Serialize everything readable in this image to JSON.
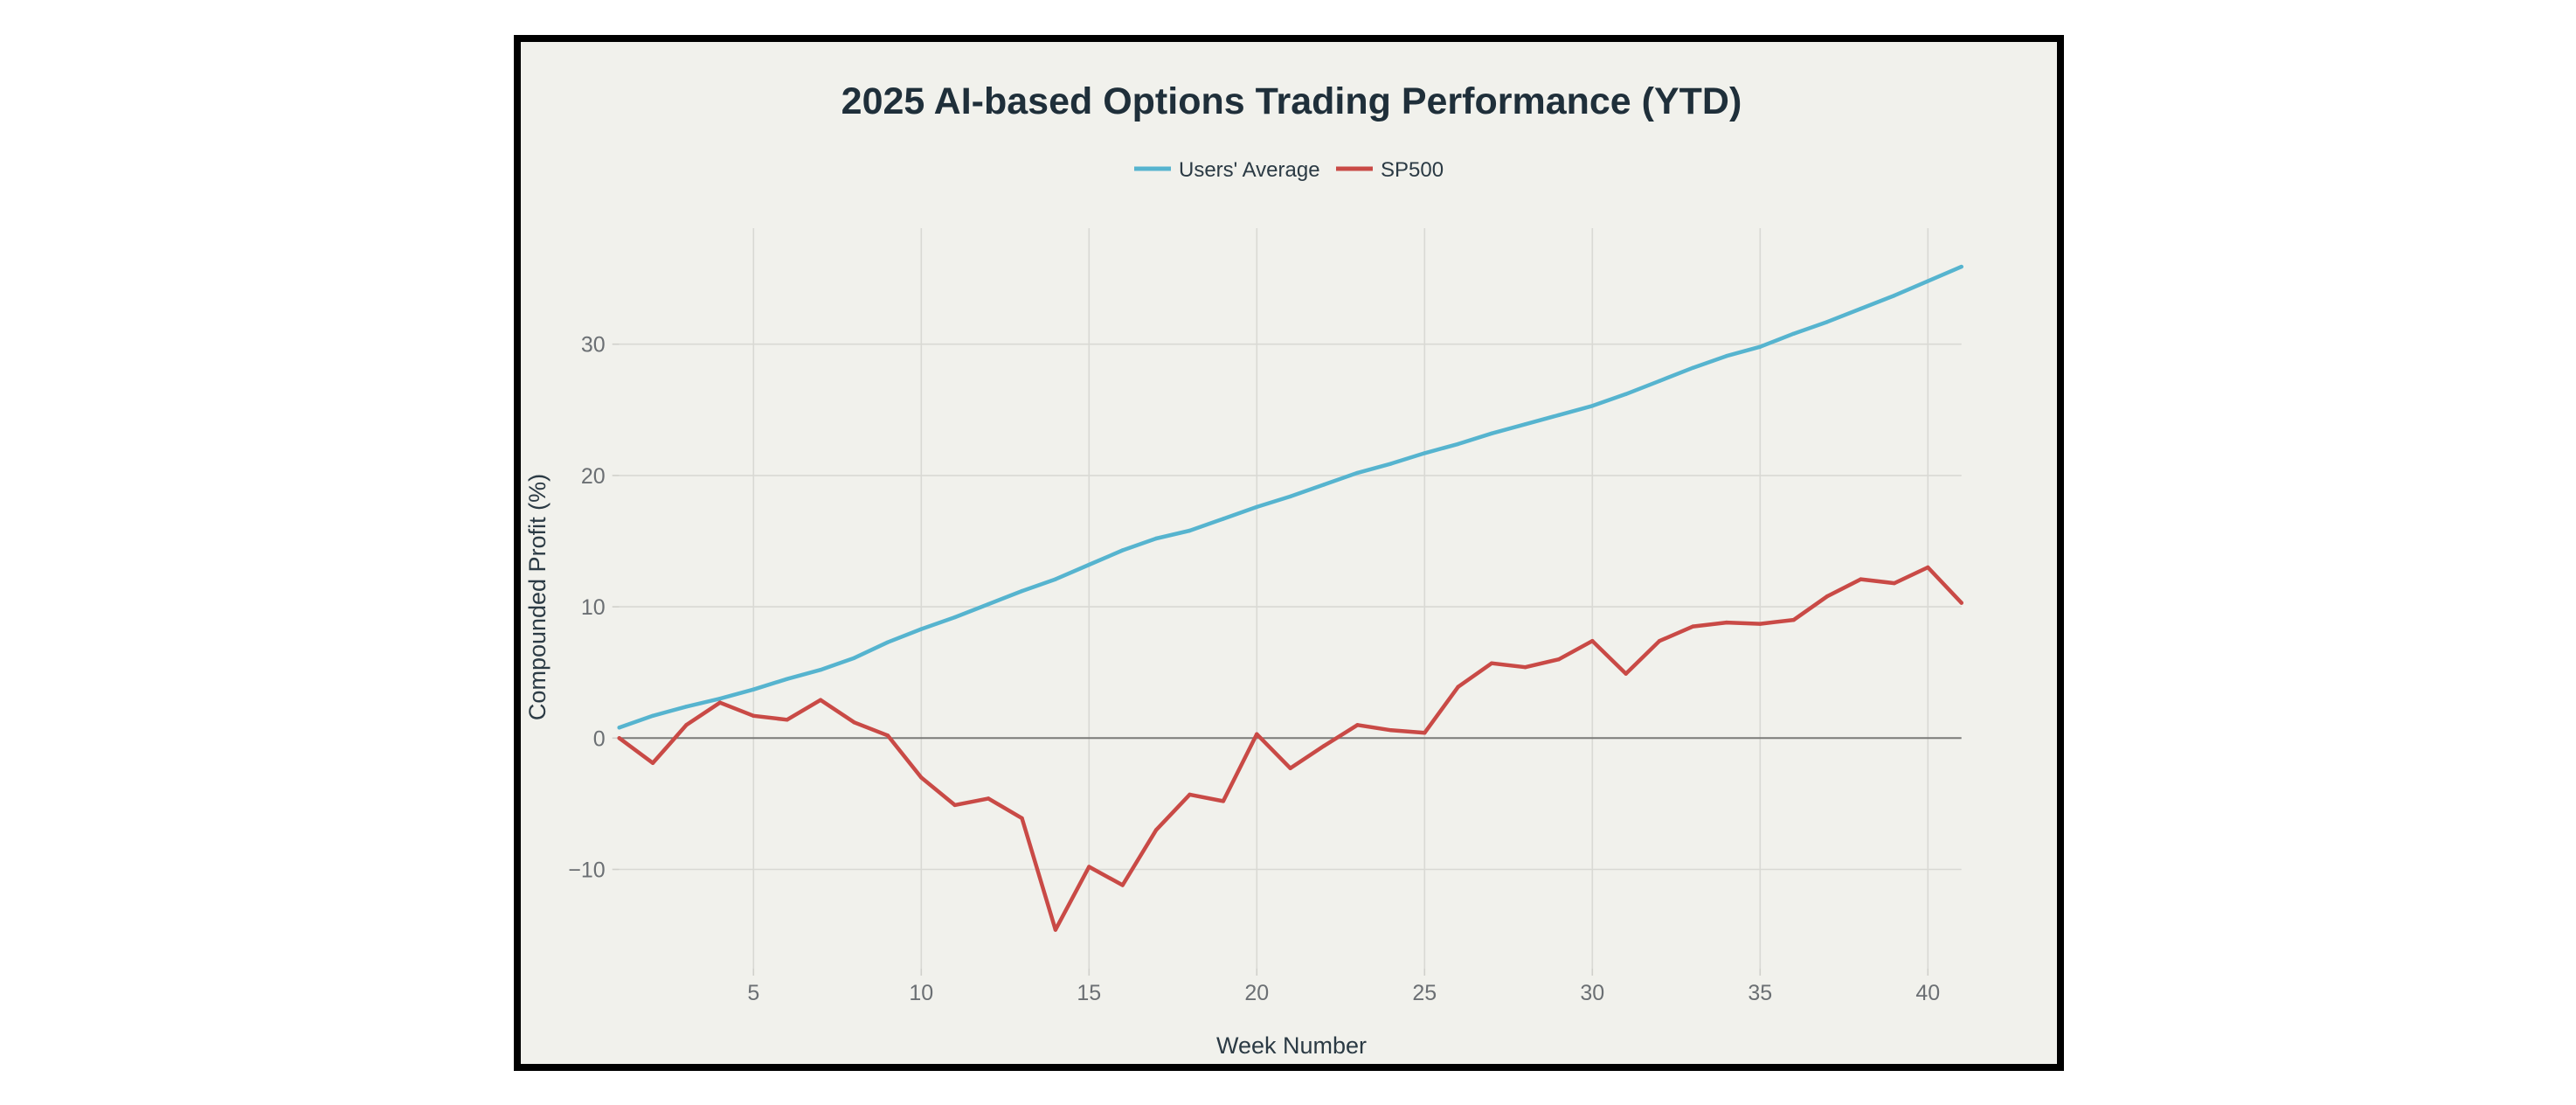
{
  "chart_data": {
    "type": "line",
    "title": "2025 AI-based Options Trading Performance (YTD)",
    "xlabel": "Week Number",
    "ylabel": "Compounded Profit (%)",
    "xlim": [
      1,
      41
    ],
    "ylim": [
      -17.5,
      38.5
    ],
    "x_ticks": [
      5,
      10,
      15,
      20,
      25,
      30,
      35,
      40
    ],
    "x_tick_labels": [
      "5",
      "10",
      "15",
      "20",
      "25",
      "30",
      "35",
      "40"
    ],
    "y_ticks": [
      30,
      20,
      10,
      0,
      -10
    ],
    "y_tick_labels": [
      "30",
      "20",
      "10",
      "0",
      "−10"
    ],
    "grid": true,
    "legend_position": "top-center",
    "background": "#f1f1ec",
    "x": [
      1,
      2,
      3,
      4,
      5,
      6,
      7,
      8,
      9,
      10,
      11,
      12,
      13,
      14,
      15,
      16,
      17,
      18,
      19,
      20,
      21,
      22,
      23,
      24,
      25,
      26,
      27,
      28,
      29,
      30,
      31,
      32,
      33,
      34,
      35,
      36,
      37,
      38,
      39,
      40,
      41
    ],
    "series": [
      {
        "name": "Users' Average",
        "color": "#56b4cf",
        "values": [
          0.8,
          1.7,
          2.4,
          3.0,
          3.7,
          4.5,
          5.2,
          6.1,
          7.3,
          8.3,
          9.2,
          10.2,
          11.2,
          12.1,
          13.2,
          14.3,
          15.2,
          15.8,
          16.7,
          17.6,
          18.4,
          19.3,
          20.2,
          20.9,
          21.7,
          22.4,
          23.2,
          23.9,
          24.6,
          25.3,
          26.2,
          27.2,
          28.2,
          29.1,
          29.8,
          30.8,
          31.7,
          32.7,
          33.7,
          34.8,
          35.9
        ]
      },
      {
        "name": "SP500",
        "color": "#c94a46",
        "values": [
          0.0,
          -1.9,
          1.0,
          2.7,
          1.7,
          1.4,
          2.9,
          1.2,
          0.2,
          -3.0,
          -5.1,
          -4.6,
          -6.1,
          -14.6,
          -9.8,
          -11.2,
          -7.0,
          -4.3,
          -4.8,
          0.3,
          -2.3,
          -0.6,
          1.0,
          0.6,
          0.4,
          3.9,
          5.7,
          5.4,
          6.0,
          7.4,
          4.9,
          7.4,
          8.5,
          8.8,
          8.7,
          9.0,
          10.8,
          12.1,
          11.8,
          13.0,
          10.3
        ]
      }
    ]
  }
}
